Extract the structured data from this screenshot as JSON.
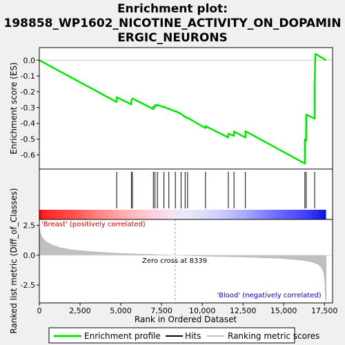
{
  "chart_data": {
    "type": "line",
    "title_line1": "Enrichment plot:",
    "title_line2": "198858_WP1602_NICOTINE_ACTIVITY_ON_DOPAMIN",
    "title_line3": "ERGIC_NEURONS",
    "xlabel": "Rank in Ordered Dataset",
    "ylabel_top": "Enrichment score (ES)",
    "ylabel_bottom": "Ranked list metric (Diff_of_Classes)",
    "xlim": [
      0,
      18000
    ],
    "x_ticks": [
      0,
      2500,
      5000,
      7500,
      10000,
      12500,
      15000,
      17500
    ],
    "x_tick_labels": [
      "0",
      "2,500",
      "5,000",
      "7,500",
      "10,000",
      "12,500",
      "15,000",
      "17,500"
    ],
    "es_ylim": [
      -0.69,
      0.08
    ],
    "es_ticks": [
      0.0,
      -0.1,
      -0.2,
      -0.3,
      -0.4,
      -0.5,
      -0.6
    ],
    "es_tick_labels": [
      "0.0",
      "-0.1",
      "-0.2",
      "-0.3",
      "-0.4",
      "-0.5",
      "-0.6"
    ],
    "metric_ylim": [
      -4.0,
      3.0
    ],
    "metric_ticks": [
      2.5,
      0.0,
      -2.5
    ],
    "metric_tick_labels": [
      "2.5",
      "0.0",
      "-2.5"
    ],
    "n_genes": 17600,
    "zero_cross": 8339,
    "zero_cross_label": "Zero cross at 8339",
    "pos_label": "'Breast' (positively correlated)",
    "neg_label": "'Blood' (negatively correlated)",
    "hits": [
      4750,
      5650,
      5720,
      7000,
      7100,
      7250,
      7650,
      7950,
      8350,
      8700,
      8950,
      9100,
      10200,
      11600,
      11950,
      12650,
      16300,
      16380,
      16900
    ],
    "es_points": [
      [
        0,
        0.0
      ],
      [
        4749,
        -0.265
      ],
      [
        4750,
        -0.235
      ],
      [
        5649,
        -0.28
      ],
      [
        5650,
        -0.255
      ],
      [
        5720,
        -0.243
      ],
      [
        6999,
        -0.31
      ],
      [
        7000,
        -0.295
      ],
      [
        7099,
        -0.298
      ],
      [
        7100,
        -0.285
      ],
      [
        7249,
        -0.288
      ],
      [
        7250,
        -0.283
      ],
      [
        7649,
        -0.298
      ],
      [
        7650,
        -0.295
      ],
      [
        7949,
        -0.31
      ],
      [
        7950,
        -0.307
      ],
      [
        8349,
        -0.325
      ],
      [
        8350,
        -0.322
      ],
      [
        8699,
        -0.34
      ],
      [
        8700,
        -0.34
      ],
      [
        8949,
        -0.36
      ],
      [
        8950,
        -0.358
      ],
      [
        9099,
        -0.368
      ],
      [
        9100,
        -0.365
      ],
      [
        10199,
        -0.43
      ],
      [
        10200,
        -0.418
      ],
      [
        11599,
        -0.49
      ],
      [
        11600,
        -0.465
      ],
      [
        11949,
        -0.48
      ],
      [
        11950,
        -0.452
      ],
      [
        12649,
        -0.49
      ],
      [
        12650,
        -0.45
      ],
      [
        16299,
        -0.655
      ],
      [
        16300,
        -0.5
      ],
      [
        16379,
        -0.51
      ],
      [
        16380,
        -0.345
      ],
      [
        16899,
        -0.37
      ],
      [
        16900,
        -0.16
      ],
      [
        16940,
        0.04
      ],
      [
        17600,
        0.0
      ]
    ],
    "metric_points": [
      [
        0,
        2.55
      ],
      [
        40,
        1.95
      ],
      [
        150,
        1.55
      ],
      [
        400,
        1.15
      ],
      [
        800,
        0.85
      ],
      [
        1300,
        0.62
      ],
      [
        2000,
        0.45
      ],
      [
        3000,
        0.32
      ],
      [
        4000,
        0.22
      ],
      [
        5000,
        0.15
      ],
      [
        6000,
        0.1
      ],
      [
        7000,
        0.06
      ],
      [
        8339,
        0.0
      ],
      [
        9500,
        -0.05
      ],
      [
        11000,
        -0.1
      ],
      [
        12500,
        -0.15
      ],
      [
        14000,
        -0.22
      ],
      [
        15000,
        -0.28
      ],
      [
        16000,
        -0.4
      ],
      [
        16700,
        -0.55
      ],
      [
        17100,
        -0.75
      ],
      [
        17300,
        -1.0
      ],
      [
        17450,
        -1.4
      ],
      [
        17520,
        -2.2
      ],
      [
        17560,
        -3.6
      ],
      [
        17600,
        -3.9
      ]
    ],
    "legend": [
      {
        "label": "Enrichment profile",
        "color": "#00e600"
      },
      {
        "label": "Hits",
        "color": "#000000"
      },
      {
        "label": "Ranking metric scores",
        "color": "#c0c0c0"
      }
    ]
  }
}
